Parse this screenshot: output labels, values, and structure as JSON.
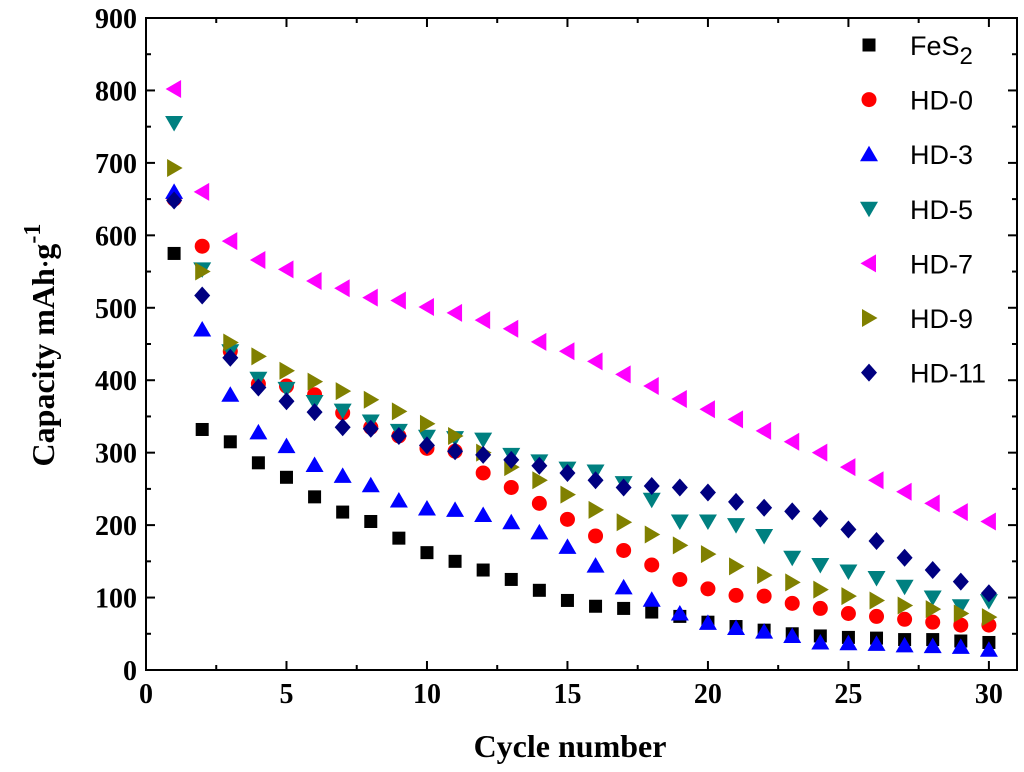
{
  "chart_data": {
    "type": "scatter",
    "title": "",
    "xlabel": "Cycle number",
    "ylabel": {
      "main": "Capacity mAh",
      "dot": "·",
      "g": "g",
      "sup": "-1"
    },
    "xlim": [
      0,
      31
    ],
    "ylim": [
      0,
      900
    ],
    "xticks": [
      0,
      5,
      10,
      15,
      20,
      25,
      30
    ],
    "yticks": [
      0,
      100,
      200,
      300,
      400,
      500,
      600,
      700,
      800,
      900
    ],
    "grid": false,
    "legend_position": "top-right",
    "x": [
      1,
      2,
      3,
      4,
      5,
      6,
      7,
      8,
      9,
      10,
      11,
      12,
      13,
      14,
      15,
      16,
      17,
      18,
      19,
      20,
      21,
      22,
      23,
      24,
      25,
      26,
      27,
      28,
      29,
      30
    ],
    "series": [
      {
        "name": "FeS",
        "subscript": "2",
        "marker": "square",
        "color": "#000000",
        "values": [
          575,
          332,
          315,
          286,
          266,
          239,
          218,
          205,
          182,
          162,
          150,
          138,
          125,
          110,
          96,
          88,
          85,
          80,
          74,
          66,
          60,
          55,
          50,
          47,
          45,
          44,
          42,
          42,
          40,
          38
        ]
      },
      {
        "name": "HD-0",
        "marker": "circle",
        "color": "#ff0000",
        "values": [
          650,
          585,
          440,
          395,
          392,
          380,
          355,
          335,
          323,
          306,
          302,
          272,
          252,
          230,
          208,
          185,
          165,
          145,
          125,
          112,
          103,
          102,
          92,
          85,
          78,
          74,
          70,
          66,
          62,
          62
        ]
      },
      {
        "name": "HD-3",
        "marker": "triangle-up",
        "color": "#0000ff",
        "values": [
          660,
          470,
          380,
          328,
          309,
          283,
          268,
          255,
          234,
          223,
          221,
          214,
          204,
          190,
          170,
          144,
          114,
          97,
          78,
          65,
          58,
          53,
          47,
          38,
          37,
          36,
          34,
          33,
          32,
          28
        ]
      },
      {
        "name": "HD-5",
        "marker": "triangle-down",
        "color": "#008080",
        "values": [
          755,
          553,
          440,
          402,
          388,
          370,
          358,
          343,
          330,
          322,
          320,
          318,
          297,
          288,
          278,
          274,
          258,
          235,
          205,
          205,
          200,
          185,
          155,
          145,
          136,
          127,
          115,
          100,
          88,
          95
        ]
      },
      {
        "name": "HD-7",
        "marker": "triangle-left",
        "color": "#ff00ff",
        "values": [
          802,
          660,
          592,
          566,
          553,
          537,
          527,
          514,
          510,
          501,
          493,
          483,
          471,
          453,
          440,
          426,
          408,
          392,
          374,
          360,
          346,
          330,
          315,
          300,
          280,
          262,
          246,
          230,
          218,
          205
        ]
      },
      {
        "name": "HD-9",
        "marker": "triangle-right",
        "color": "#808000",
        "values": [
          693,
          550,
          452,
          433,
          413,
          398,
          385,
          373,
          357,
          340,
          323,
          300,
          280,
          262,
          242,
          221,
          204,
          187,
          172,
          160,
          143,
          131,
          121,
          111,
          102,
          96,
          89,
          84,
          78,
          73
        ]
      },
      {
        "name": "HD-11",
        "marker": "diamond",
        "color": "#000080",
        "values": [
          648,
          517,
          431,
          390,
          371,
          356,
          335,
          333,
          323,
          310,
          302,
          297,
          290,
          282,
          272,
          262,
          252,
          254,
          252,
          245,
          232,
          224,
          219,
          209,
          194,
          178,
          155,
          138,
          122,
          106
        ]
      }
    ]
  }
}
